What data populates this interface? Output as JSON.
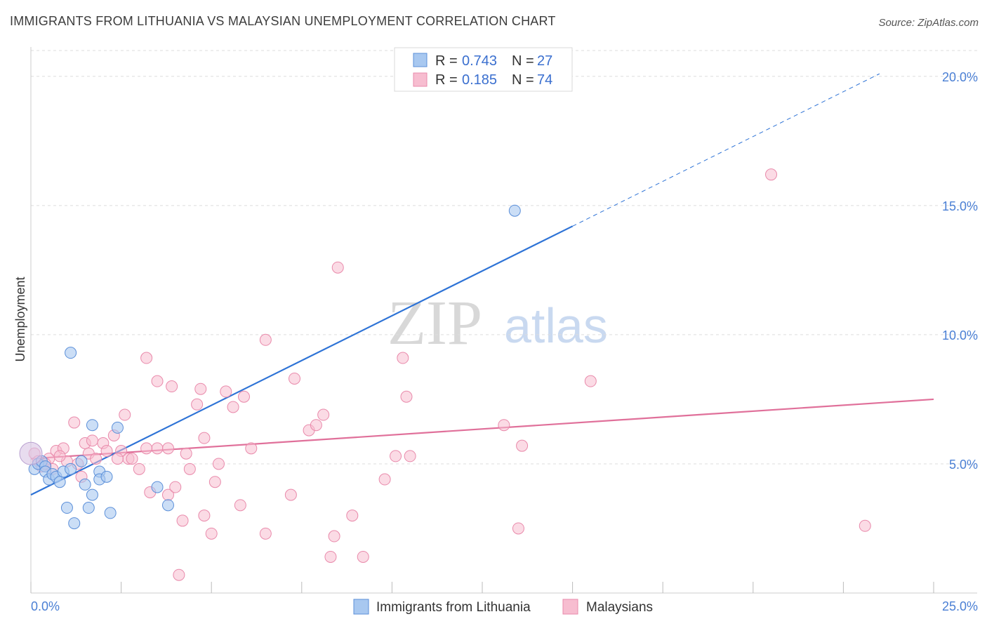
{
  "header": {
    "title": "IMMIGRANTS FROM LITHUANIA VS MALAYSIAN UNEMPLOYMENT CORRELATION CHART",
    "source": "Source: ZipAtlas.com"
  },
  "watermark": {
    "zip": "ZIP",
    "atlas": "atlas"
  },
  "legend": {
    "series1": {
      "r_label": "R =",
      "r_value": "0.743",
      "n_label": "N =",
      "n_value": "27"
    },
    "series2": {
      "r_label": "R =",
      "r_value": "0.185",
      "n_label": "N =",
      "n_value": "74"
    }
  },
  "bottom_legend": {
    "series1": "Immigrants from Lithuania",
    "series2": "Malaysians"
  },
  "colors": {
    "blue_fill": "#a8c8f0",
    "blue_stroke": "#5b8fd9",
    "blue_line": "#2e73d6",
    "pink_fill": "#f7bdd0",
    "pink_stroke": "#e98aab",
    "pink_line": "#e0709a",
    "tick": "#4a7fd4"
  },
  "chart_data": {
    "type": "scatter",
    "title": "IMMIGRANTS FROM LITHUANIA VS MALAYSIAN UNEMPLOYMENT CORRELATION CHART",
    "xlabel": "",
    "ylabel": "Unemployment",
    "xlim": [
      0,
      25
    ],
    "ylim": [
      0,
      21
    ],
    "x_tick_labels": [
      "0.0%",
      "25.0%"
    ],
    "y_ticks": [
      5,
      10,
      15,
      20
    ],
    "y_tick_labels": [
      "5.0%",
      "10.0%",
      "15.0%",
      "20.0%"
    ],
    "grid": true,
    "legend_position": "top-center",
    "series": [
      {
        "name": "Immigrants from Lithuania",
        "R": 0.743,
        "N": 27,
        "points": [
          [
            0.1,
            4.8
          ],
          [
            0.2,
            5.0
          ],
          [
            0.3,
            5.1
          ],
          [
            0.4,
            4.9
          ],
          [
            0.4,
            4.7
          ],
          [
            0.5,
            4.4
          ],
          [
            0.6,
            4.6
          ],
          [
            0.7,
            4.5
          ],
          [
            0.8,
            4.3
          ],
          [
            0.9,
            4.7
          ],
          [
            1.0,
            3.3
          ],
          [
            1.1,
            4.8
          ],
          [
            1.2,
            2.7
          ],
          [
            1.4,
            5.1
          ],
          [
            1.5,
            4.2
          ],
          [
            1.6,
            3.3
          ],
          [
            1.7,
            3.8
          ],
          [
            1.7,
            6.5
          ],
          [
            1.9,
            4.7
          ],
          [
            1.9,
            4.4
          ],
          [
            2.1,
            4.5
          ],
          [
            2.2,
            3.1
          ],
          [
            2.4,
            6.4
          ],
          [
            3.5,
            4.1
          ],
          [
            3.8,
            3.4
          ],
          [
            1.1,
            9.3
          ],
          [
            13.4,
            14.8
          ]
        ],
        "trend": {
          "x": [
            0,
            15
          ],
          "y": [
            3.8,
            14.2
          ],
          "dashed_x": [
            15,
            23.5
          ],
          "dashed_y": [
            14.2,
            20.1
          ]
        }
      },
      {
        "name": "Malaysians",
        "R": 0.185,
        "N": 74,
        "points": [
          [
            0.1,
            5.4
          ],
          [
            0.2,
            5.1
          ],
          [
            0.3,
            4.9
          ],
          [
            0.5,
            5.2
          ],
          [
            0.6,
            4.8
          ],
          [
            0.7,
            5.5
          ],
          [
            0.9,
            5.6
          ],
          [
            1.0,
            5.1
          ],
          [
            1.2,
            6.6
          ],
          [
            1.3,
            5.0
          ],
          [
            1.5,
            5.8
          ],
          [
            1.6,
            5.4
          ],
          [
            1.7,
            5.9
          ],
          [
            1.8,
            5.2
          ],
          [
            2.0,
            5.8
          ],
          [
            2.1,
            5.5
          ],
          [
            2.3,
            6.1
          ],
          [
            2.5,
            5.5
          ],
          [
            2.6,
            6.9
          ],
          [
            2.7,
            5.2
          ],
          [
            2.8,
            5.2
          ],
          [
            3.0,
            4.8
          ],
          [
            3.2,
            9.1
          ],
          [
            3.3,
            3.9
          ],
          [
            3.5,
            8.2
          ],
          [
            3.5,
            5.6
          ],
          [
            3.8,
            3.8
          ],
          [
            3.8,
            5.6
          ],
          [
            3.9,
            8.0
          ],
          [
            4.0,
            4.1
          ],
          [
            4.2,
            2.8
          ],
          [
            4.3,
            5.4
          ],
          [
            4.4,
            4.8
          ],
          [
            4.6,
            7.3
          ],
          [
            4.7,
            7.9
          ],
          [
            4.8,
            3.0
          ],
          [
            4.8,
            6.0
          ],
          [
            5.0,
            2.3
          ],
          [
            5.1,
            4.3
          ],
          [
            5.2,
            5.0
          ],
          [
            5.4,
            7.8
          ],
          [
            5.6,
            7.2
          ],
          [
            5.8,
            3.4
          ],
          [
            5.9,
            7.6
          ],
          [
            6.1,
            5.6
          ],
          [
            6.5,
            9.8
          ],
          [
            6.5,
            2.3
          ],
          [
            7.2,
            3.8
          ],
          [
            7.3,
            8.3
          ],
          [
            7.7,
            6.3
          ],
          [
            7.9,
            6.5
          ],
          [
            8.1,
            6.9
          ],
          [
            8.3,
            1.4
          ],
          [
            8.4,
            2.2
          ],
          [
            8.5,
            12.6
          ],
          [
            8.9,
            3.0
          ],
          [
            9.2,
            1.4
          ],
          [
            9.8,
            4.4
          ],
          [
            10.1,
            5.3
          ],
          [
            10.3,
            9.1
          ],
          [
            10.4,
            7.6
          ],
          [
            10.5,
            5.3
          ],
          [
            13.1,
            6.5
          ],
          [
            13.5,
            2.5
          ],
          [
            13.6,
            5.7
          ],
          [
            15.5,
            8.2
          ],
          [
            20.5,
            16.2
          ],
          [
            23.1,
            2.6
          ],
          [
            4.1,
            0.7
          ],
          [
            0.4,
            5.0
          ],
          [
            1.4,
            4.5
          ],
          [
            2.4,
            5.2
          ],
          [
            3.2,
            5.6
          ],
          [
            0.8,
            5.3
          ]
        ],
        "trend": {
          "x": [
            0,
            25
          ],
          "y": [
            5.2,
            7.5
          ]
        }
      }
    ]
  }
}
